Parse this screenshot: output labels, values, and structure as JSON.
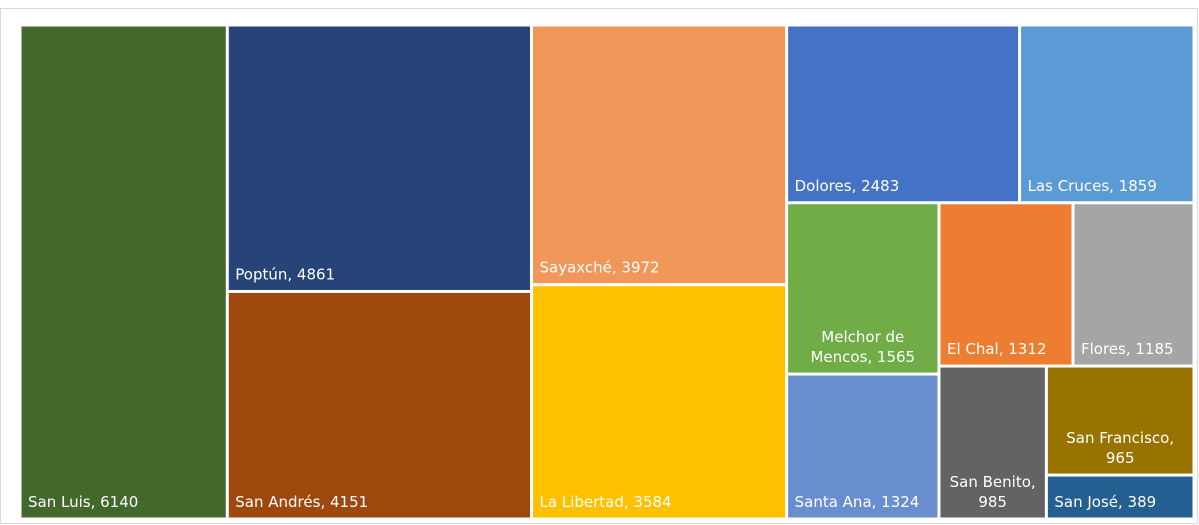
{
  "chart_data": {
    "type": "treemap",
    "values": [
      6140,
      4861,
      4151,
      3972,
      3584,
      2483,
      1859,
      1565,
      1324,
      1312,
      1185,
      985,
      965,
      389
    ],
    "value_labels": [
      "San Luis, 6140",
      "Poptún, 4861",
      "San Andrés, 4151",
      "Sayaxché, 3972",
      "La Libertad, 3584",
      "Dolores, 2483",
      "Las Cruces, 1859",
      "Melchor de Mencos, 1565",
      "Santa Ana, 1324",
      "El Chal, 1312",
      "Flores, 1185",
      "San Benito, 985",
      "San Francisco, 965",
      "San José, 389"
    ],
    "colors": [
      "#43682b",
      "#264478",
      "#9e480e",
      "#f1975a",
      "#ffc000",
      "#4472c4",
      "#5b9bd5",
      "#70ad47",
      "#698ed0",
      "#ed7d31",
      "#a5a5a5",
      "#636363",
      "#997300",
      "#255e91"
    ]
  }
}
